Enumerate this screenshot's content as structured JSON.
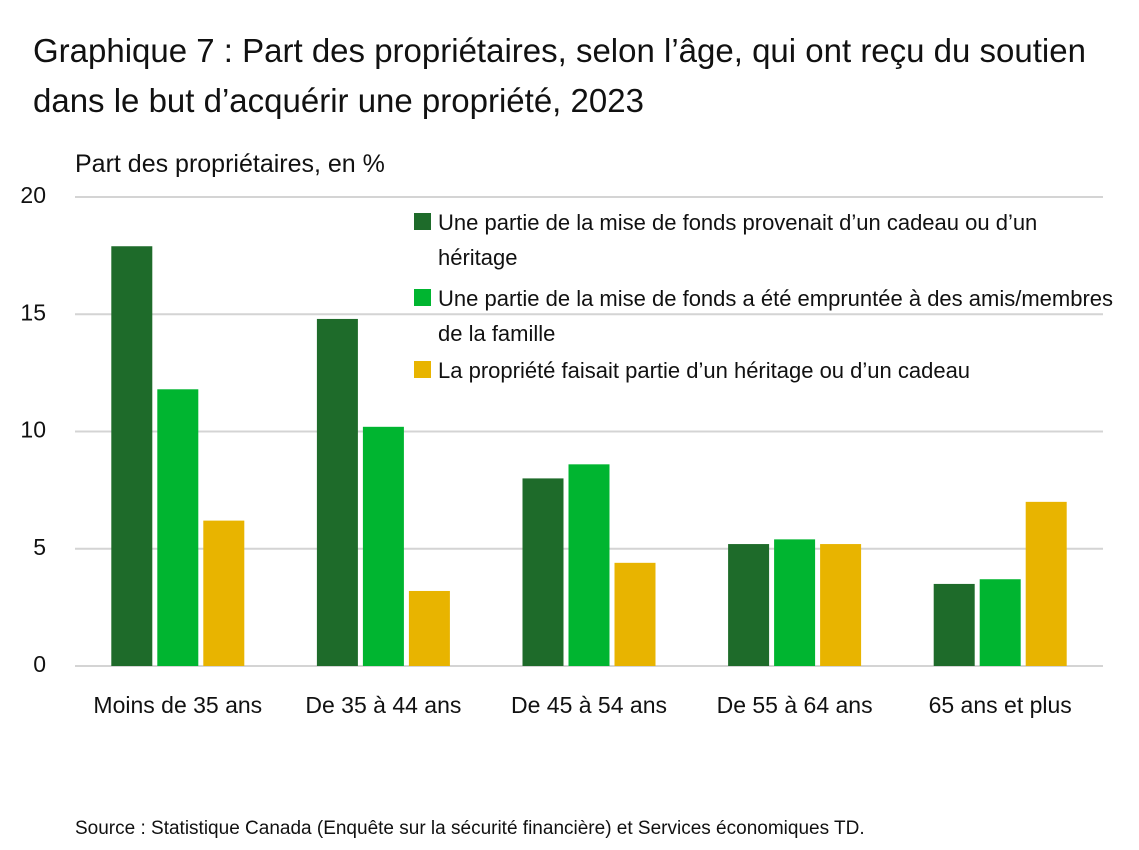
{
  "chart_data": {
    "type": "bar",
    "title": "Graphique 7 : Part des propriétaires, selon l’âge, qui ont reçu du soutien dans le but d’acquérir une propriété, 2023",
    "y_label": "Part des propriétaires, en %",
    "categories": [
      "Moins de 35 ans",
      "De 35 à 44 ans",
      "De 45 à 54 ans",
      "De 55 à 64 ans",
      "65 ans et plus"
    ],
    "series": [
      {
        "name": "Une partie de la mise de fonds provenait d’un cadeau ou d’un héritage",
        "color": "#1e6b2a",
        "values": [
          17.9,
          14.8,
          8.0,
          5.2,
          3.5
        ]
      },
      {
        "name": "Une partie de la mise de fonds a été empruntée à des amis/membres de la famille",
        "color": "#00b530",
        "values": [
          11.8,
          10.2,
          8.6,
          5.4,
          3.7
        ]
      },
      {
        "name": "La propriété faisait partie d’un héritage ou d’un cadeau",
        "color": "#e8b400",
        "values": [
          6.2,
          3.2,
          4.4,
          5.2,
          7.0
        ]
      }
    ],
    "ylim": [
      0,
      20
    ],
    "yticks": [
      0,
      5,
      10,
      15,
      20
    ],
    "grid": true,
    "legend": "top-right",
    "source": "Source : Statistique Canada (Enquête sur la sécurité financière) et Services économiques TD."
  }
}
